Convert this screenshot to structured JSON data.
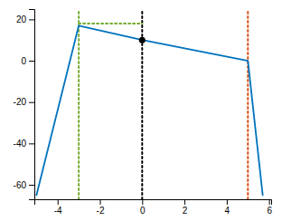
{
  "chart_data": {
    "type": "line",
    "series": [
      {
        "x": [
          -5.0,
          -3.0,
          -3.0,
          0.0,
          5.0,
          5.7
        ],
        "values": [
          -65.0,
          17.0,
          17.0,
          10.0,
          0.0,
          -65.0
        ],
        "color": "#0072bd"
      },
      {
        "type": "vline",
        "x": [
          -3.0
        ],
        "color": "#77ac30",
        "line_style": "dotted"
      },
      {
        "type": "vline",
        "x": [
          0.0
        ],
        "color": "#000000",
        "line_style": "dotted"
      },
      {
        "type": "vline",
        "x": [
          5.0
        ],
        "color": "#d95319",
        "line_style": "dotted"
      },
      {
        "x": [
          -3.0,
          0.0
        ],
        "values": [
          18.0,
          18.0
        ],
        "color": "#77ac30",
        "line_style": "dotted"
      },
      {
        "type": "scatter",
        "x": [
          0.0
        ],
        "values": [
          10.0
        ],
        "color": "#000000",
        "marker": "circle"
      }
    ],
    "xlim": [
      -5.1,
      6.1
    ],
    "ylim": [
      -67,
      25
    ],
    "xticks": [
      -4,
      -2,
      0,
      2,
      4,
      6
    ],
    "yticks": [
      -60,
      -40,
      -20,
      0,
      20
    ],
    "grid": false
  }
}
